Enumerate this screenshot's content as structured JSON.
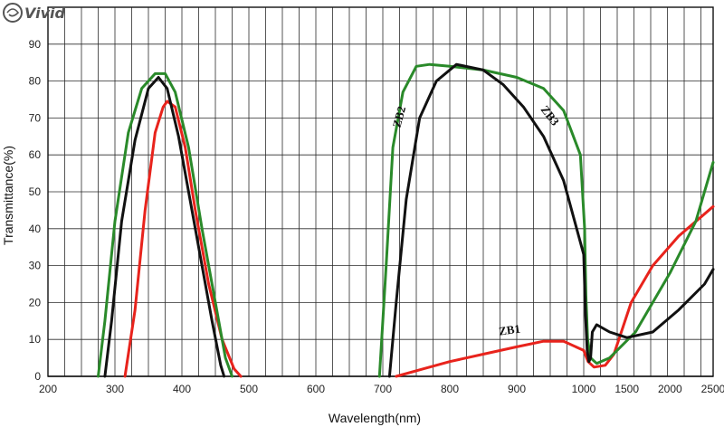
{
  "watermark": {
    "text": "Vivid"
  },
  "chart_data": {
    "type": "line",
    "title": "",
    "xlabel": "Wavelength(nm)",
    "ylabel": "Transmittance(%)",
    "ylim": [
      0,
      100
    ],
    "y_ticks": [
      0,
      10,
      20,
      30,
      40,
      50,
      60,
      70,
      80,
      90
    ],
    "x_ticks": [
      "200",
      "300",
      "400",
      "500",
      "600",
      "700",
      "800",
      "900",
      "1000",
      "1500",
      "2000",
      "2500"
    ],
    "grid": true,
    "annotations": [
      "ZB1",
      "ZB2",
      "ZB3"
    ],
    "series": [
      {
        "name": "ZB1",
        "color": "#e8231c",
        "points": [
          [
            315,
            0
          ],
          [
            330,
            18
          ],
          [
            345,
            45
          ],
          [
            360,
            66
          ],
          [
            372,
            73
          ],
          [
            378,
            74.5
          ],
          [
            390,
            73
          ],
          [
            405,
            62
          ],
          [
            420,
            45
          ],
          [
            440,
            25
          ],
          [
            460,
            10
          ],
          [
            478,
            2
          ],
          [
            488,
            0
          ],
          [
            720,
            0
          ],
          [
            760,
            2
          ],
          [
            800,
            4
          ],
          [
            850,
            6
          ],
          [
            900,
            8
          ],
          [
            940,
            9.5
          ],
          [
            970,
            9.5
          ],
          [
            1000,
            7
          ],
          [
            1050,
            4
          ],
          [
            1120,
            2.5
          ],
          [
            1250,
            3
          ],
          [
            1350,
            6
          ],
          [
            1550,
            20
          ],
          [
            1800,
            30
          ],
          [
            2100,
            38
          ],
          [
            2500,
            46
          ]
        ]
      },
      {
        "name": "ZB2",
        "color": "#2a8a2a",
        "points": [
          [
            275,
            0
          ],
          [
            285,
            15
          ],
          [
            300,
            42
          ],
          [
            320,
            66
          ],
          [
            340,
            78
          ],
          [
            360,
            82
          ],
          [
            375,
            82
          ],
          [
            390,
            77
          ],
          [
            410,
            62
          ],
          [
            430,
            40
          ],
          [
            450,
            20
          ],
          [
            465,
            5
          ],
          [
            475,
            0
          ],
          [
            695,
            0
          ],
          [
            705,
            30
          ],
          [
            715,
            62
          ],
          [
            730,
            77
          ],
          [
            750,
            84
          ],
          [
            770,
            84.5
          ],
          [
            800,
            84
          ],
          [
            850,
            83
          ],
          [
            900,
            81
          ],
          [
            940,
            78
          ],
          [
            970,
            72
          ],
          [
            995,
            60
          ],
          [
            1010,
            40
          ],
          [
            1025,
            22
          ],
          [
            1045,
            10
          ],
          [
            1080,
            5
          ],
          [
            1150,
            3.5
          ],
          [
            1300,
            5
          ],
          [
            1600,
            12
          ],
          [
            2000,
            28
          ],
          [
            2300,
            42
          ],
          [
            2500,
            58
          ]
        ]
      },
      {
        "name": "ZB3",
        "color": "#111111",
        "points": [
          [
            285,
            0
          ],
          [
            295,
            15
          ],
          [
            310,
            42
          ],
          [
            330,
            64
          ],
          [
            350,
            78
          ],
          [
            365,
            81
          ],
          [
            378,
            78
          ],
          [
            395,
            65
          ],
          [
            415,
            45
          ],
          [
            430,
            30
          ],
          [
            445,
            15
          ],
          [
            458,
            3
          ],
          [
            463,
            0
          ],
          [
            710,
            0
          ],
          [
            720,
            20
          ],
          [
            735,
            48
          ],
          [
            755,
            70
          ],
          [
            780,
            80
          ],
          [
            810,
            84.5
          ],
          [
            850,
            83
          ],
          [
            880,
            79
          ],
          [
            910,
            73
          ],
          [
            940,
            65
          ],
          [
            970,
            53
          ],
          [
            1000,
            33
          ],
          [
            1020,
            17
          ],
          [
            1040,
            7
          ],
          [
            1060,
            4
          ],
          [
            1080,
            5
          ],
          [
            1100,
            12
          ],
          [
            1150,
            14
          ],
          [
            1300,
            12
          ],
          [
            1500,
            10.5
          ],
          [
            1800,
            12
          ],
          [
            2100,
            18
          ],
          [
            2400,
            25
          ],
          [
            2500,
            29
          ]
        ]
      }
    ]
  }
}
